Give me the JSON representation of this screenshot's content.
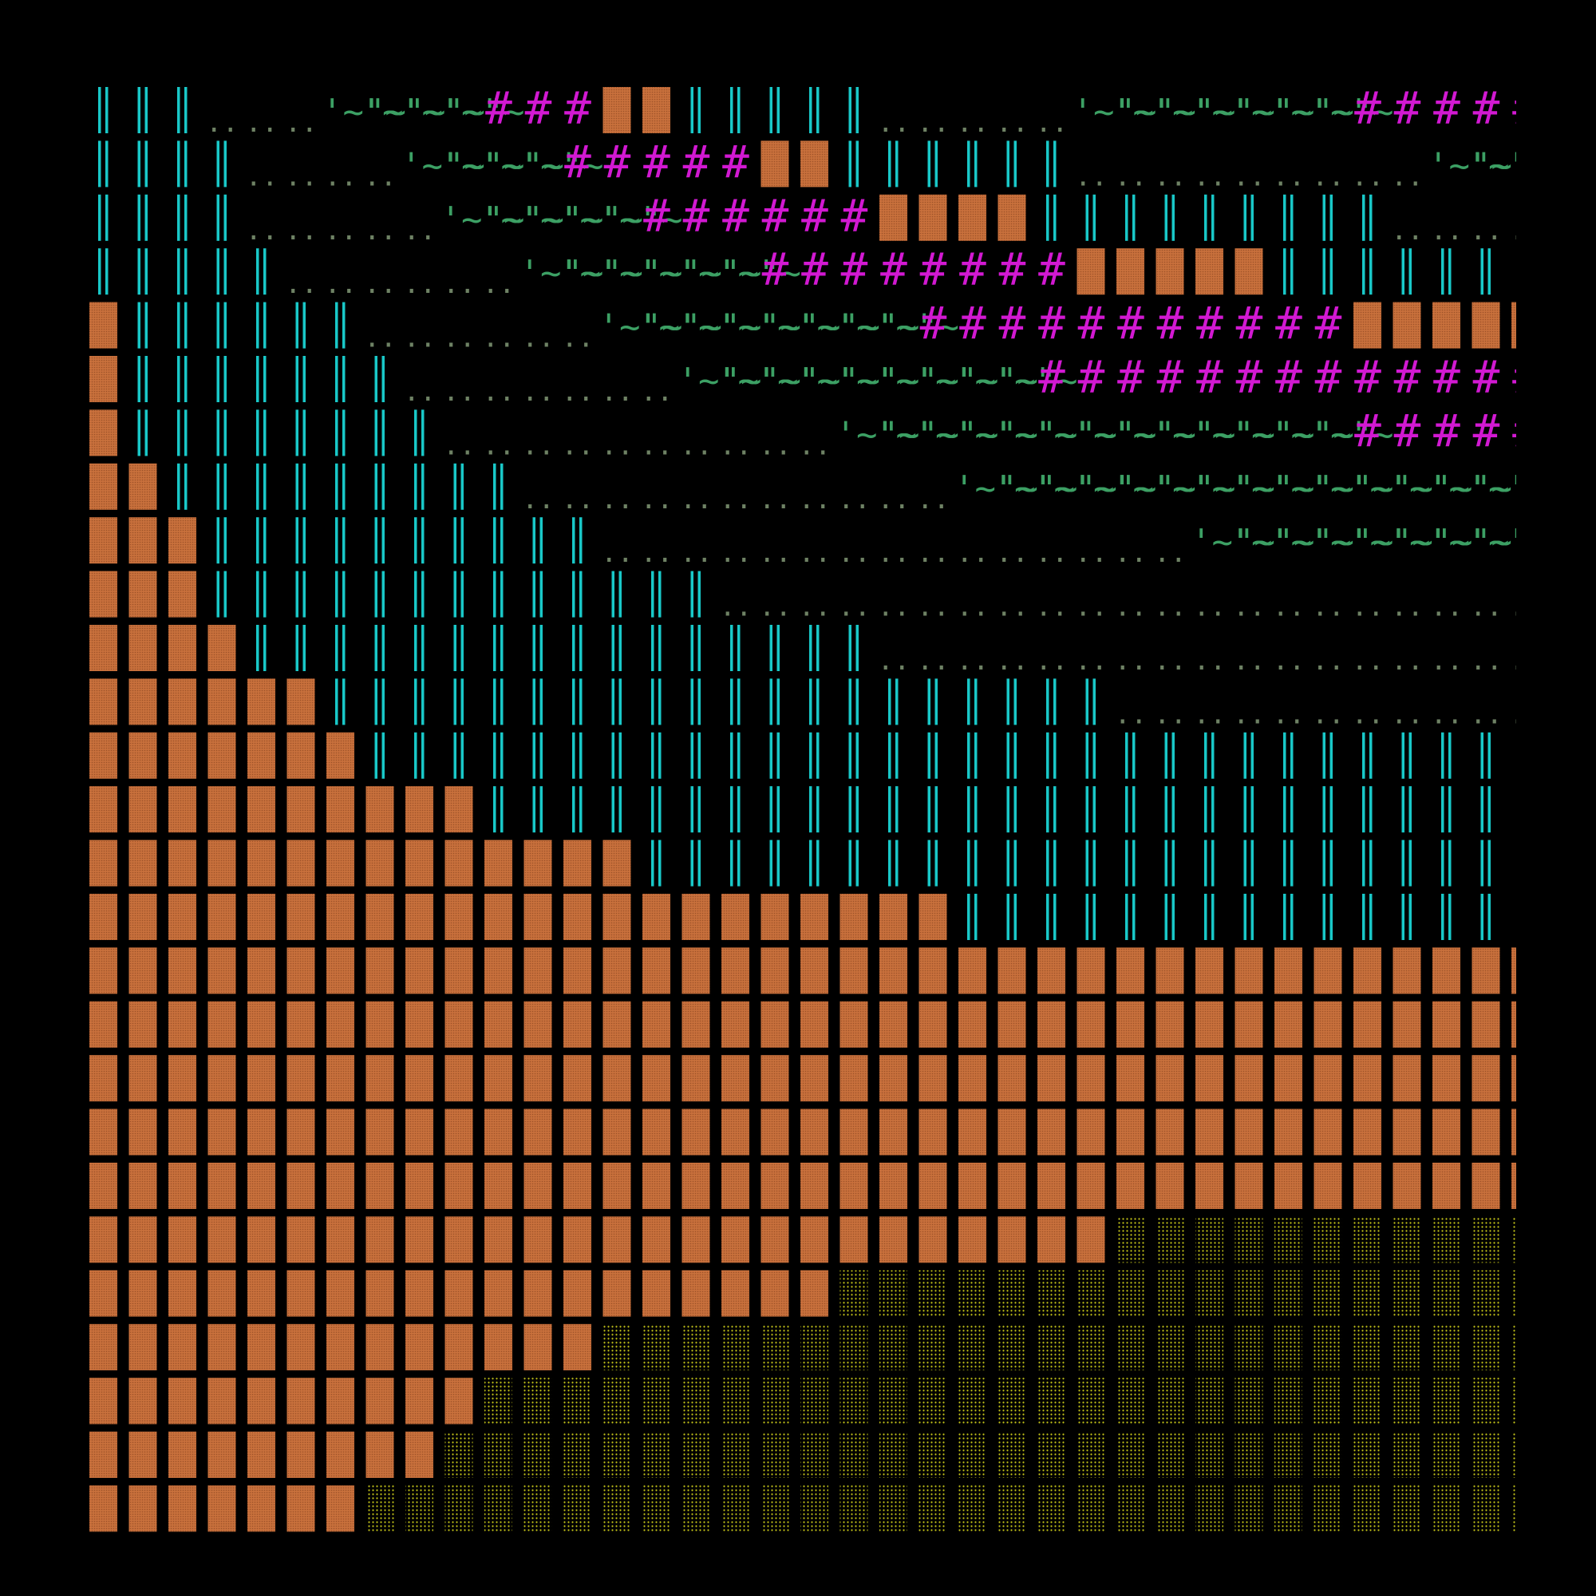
{
  "background": "#000000",
  "glyph_styles": {
    "B": {
      "name": "brick-block",
      "color": "#c8703c"
    },
    "S": {
      "name": "sand-block",
      "color": "#c8c819"
    },
    "V": {
      "name": "cyan-bars",
      "color": "#19c8c8"
    },
    "T": {
      "name": "tilde-wave",
      "text": "'~\"~",
      "color": "#3ca064"
    },
    "D": {
      "name": "dot-pair",
      "text": "..",
      "color": "#6e8264"
    },
    "H": {
      "name": "hash-mark",
      "text": "#",
      "color": "#d219d2"
    }
  },
  "rows": [
    "VVVDDDTTTTHHHBBVVVVVDDDDDTTTTTTTHHHHH",
    "VVVVDDDDTTTTHHHHHBBVVVVVVDDDDDDDDDTTTT",
    "VVVVDDDDDTTTTTHHHHHHBBBBVVVVVVVVVDDDDD",
    "VVVVVDDDDDDTTTTTTHHHHHHHHBBBBBVVVVVVVV",
    "BVVVVVVDDDDDDTTTTTTTTHHHHHHHHHHHBBBBBB",
    "BVVVVVVVDDDDDDDTTTTTTTTTHHHHHHHHHHHHHH",
    "BVVVVVVVVDDDDDDDDDDTTTTTTTTTTTTTHHHHHH",
    "BBVVVVVVVVVDDDDDDDDDDDTTTTTTTTTTTTTTTT",
    "BBBVVVVVVVVVVDDDDDDDDDDDDDDDTTTTTTTTTT",
    "BBBVVVVVVVVVVVVVDDDDDDDDDDDDDDDDDDDDDD",
    "BBBBVVVVVVVVVVVVVVVVDDDDDDDDDDDDDDDDDD",
    "BBBBBBVVVVVVVVVVVVVVVVVVVVDDDDDDDDDDDD",
    "BBBBBBBVVVVVVVVVVVVVVVVVVVVVVVVVVVVVVV",
    "BBBBBBBBBBVVVVVVVVVVVVVVVVVVVVVVVVVVVV",
    "BBBBBBBBBBBBBBVVVVVVVVVVVVVVVVVVVVVVVV",
    "BBBBBBBBBBBBBBBBBBBBBBVVVVVVVVVVVVVVVV",
    "BBBBBBBBBBBBBBBBBBBBBBBBBBBBBBBBBBBBBB",
    "BBBBBBBBBBBBBBBBBBBBBBBBBBBBBBBBBBBBBB",
    "BBBBBBBBBBBBBBBBBBBBBBBBBBBBBBBBBBBBBB",
    "BBBBBBBBBBBBBBBBBBBBBBBBBBBBBBBBBBBBBB",
    "BBBBBBBBBBBBBBBBBBBBBBBBBBBBBBBBBBBBBB",
    "BBBBBBBBBBBBBBBBBBBBBBBBBBSSSSSSSSSSSS",
    "BBBBBBBBBBBBBBBBBBBSSSSSSSSSSSSSSSSSSS",
    "BBBBBBBBBBBBBSSSSSSSSSSSSSSSSSSSSSSSSS",
    "BBBBBBBBBBSSSSSSSSSSSSSSSSSSSSSSSSSSSS",
    "BBBBBBBBBSSSSSSSSSSSSSSSSSSSSSSSSSSSSS",
    "BBBBBBBSSSSSSSSSSSSSSSSSSSSSSSSSSSSSSS"
  ]
}
